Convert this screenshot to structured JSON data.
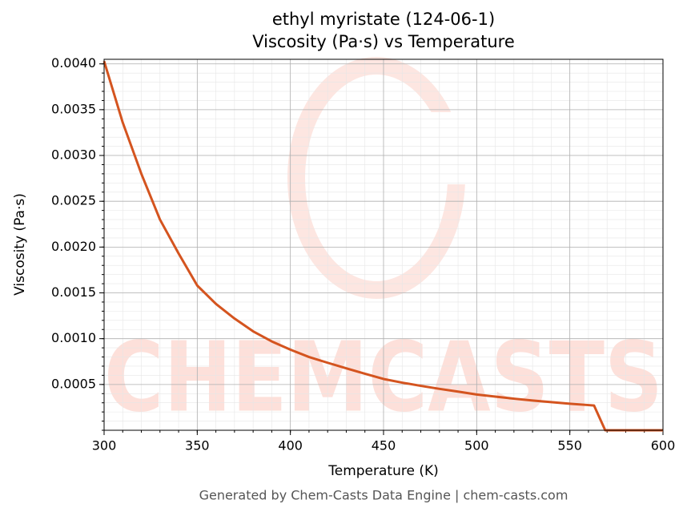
{
  "chart_data": {
    "type": "line",
    "title": "ethyl myristate (124-06-1)",
    "subtitle": "Viscosity (Pa·s) vs Temperature",
    "x_label": "Temperature (K)",
    "y_label": "Viscosity (Pa·s)",
    "footer": "Generated by Chem-Casts Data Engine | chem-casts.com",
    "watermark": "CHEMCASTS",
    "x": [
      300,
      310,
      320,
      330,
      340,
      350,
      360,
      370,
      380,
      390,
      400,
      410,
      420,
      430,
      440,
      450,
      460,
      470,
      480,
      490,
      500,
      510,
      520,
      530,
      540,
      550,
      560,
      563,
      569,
      580,
      590,
      600
    ],
    "series": [
      {
        "name": "Viscosity",
        "color": "#d4541f",
        "values": [
          0.00403,
          0.00336,
          0.0028,
          0.0023,
          0.00193,
          0.00158,
          0.00138,
          0.00122,
          0.00108,
          0.00097,
          0.00088,
          0.0008,
          0.000737,
          0.000676,
          0.000617,
          0.00056,
          0.00052,
          0.000485,
          0.000452,
          0.000422,
          0.00039,
          0.000367,
          0.000345,
          0.000325,
          0.000307,
          0.00029,
          0.000275,
          0.00027,
          0,
          0,
          0,
          0
        ]
      }
    ],
    "xlim": [
      300,
      600
    ],
    "ylim": [
      0,
      0.00405
    ],
    "xticks": [
      300,
      350,
      400,
      450,
      500,
      550,
      600
    ],
    "yticks": [
      0.0005,
      {
        "value": 0.001,
        "label": "0.0010"
      },
      0.0015,
      {
        "value": 0.002,
        "label": "0.0020"
      },
      0.0025,
      {
        "value": 0.003,
        "label": "0.0030"
      },
      0.0035,
      {
        "value": 0.004,
        "label": "0.0040"
      }
    ],
    "x_minor_step": 10,
    "y_minor_step": 0.0001,
    "grid": true,
    "minor_grid": true
  }
}
